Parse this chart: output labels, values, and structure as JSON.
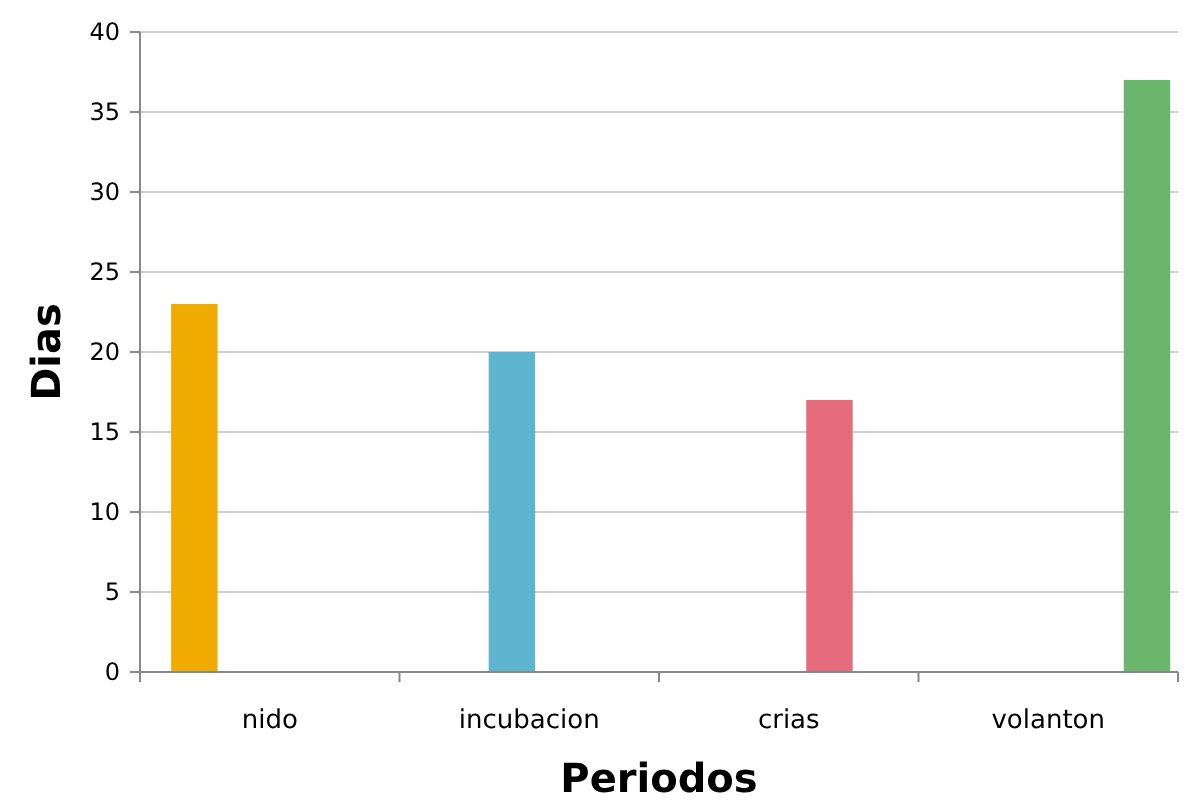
{
  "chart_data": {
    "type": "bar",
    "xlabel": "Periodos",
    "ylabel": "Dias",
    "categories": [
      "nido",
      "incubacion",
      "crias",
      "volanton"
    ],
    "series": [
      {
        "color": "#f0ab00",
        "values": [
          23,
          null,
          null,
          null
        ]
      },
      {
        "color": "#5fb4cf",
        "values": [
          null,
          20,
          null,
          null
        ]
      },
      {
        "color": "#e66b7c",
        "values": [
          null,
          null,
          17,
          null
        ]
      },
      {
        "color": "#6ab66c",
        "values": [
          null,
          null,
          null,
          37
        ]
      }
    ],
    "ylim": [
      0,
      40
    ],
    "yticks": [
      0,
      5,
      10,
      15,
      20,
      25,
      30,
      35,
      40
    ],
    "grid": "y"
  }
}
